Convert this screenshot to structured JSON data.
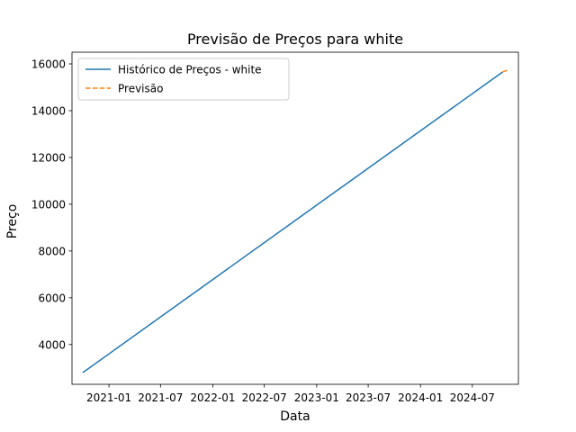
{
  "chart_data": {
    "type": "line",
    "title": "Previsão de Preços para white",
    "xlabel": "Data",
    "ylabel": "Preço",
    "x_ticks": [
      "2021-01",
      "2021-07",
      "2022-01",
      "2022-07",
      "2023-01",
      "2023-07",
      "2024-01",
      "2024-07"
    ],
    "y_ticks": [
      4000,
      6000,
      8000,
      10000,
      12000,
      14000,
      16000
    ],
    "ylim": [
      2300,
      16500
    ],
    "xlim": [
      "2020-08-24",
      "2024-12-10"
    ],
    "grid": false,
    "legend_position": "top-left",
    "series": [
      {
        "name": "Histórico de Preços - white",
        "color": "#1f77b4",
        "style": "solid",
        "x": [
          "2020-10-01",
          "2024-10-15"
        ],
        "y": [
          2800,
          15650
        ]
      },
      {
        "name": "Previsão",
        "color": "#ff7f0e",
        "style": "dashed",
        "x": [
          "2024-10-15",
          "2024-11-05"
        ],
        "y": [
          15650,
          15750
        ]
      }
    ]
  }
}
